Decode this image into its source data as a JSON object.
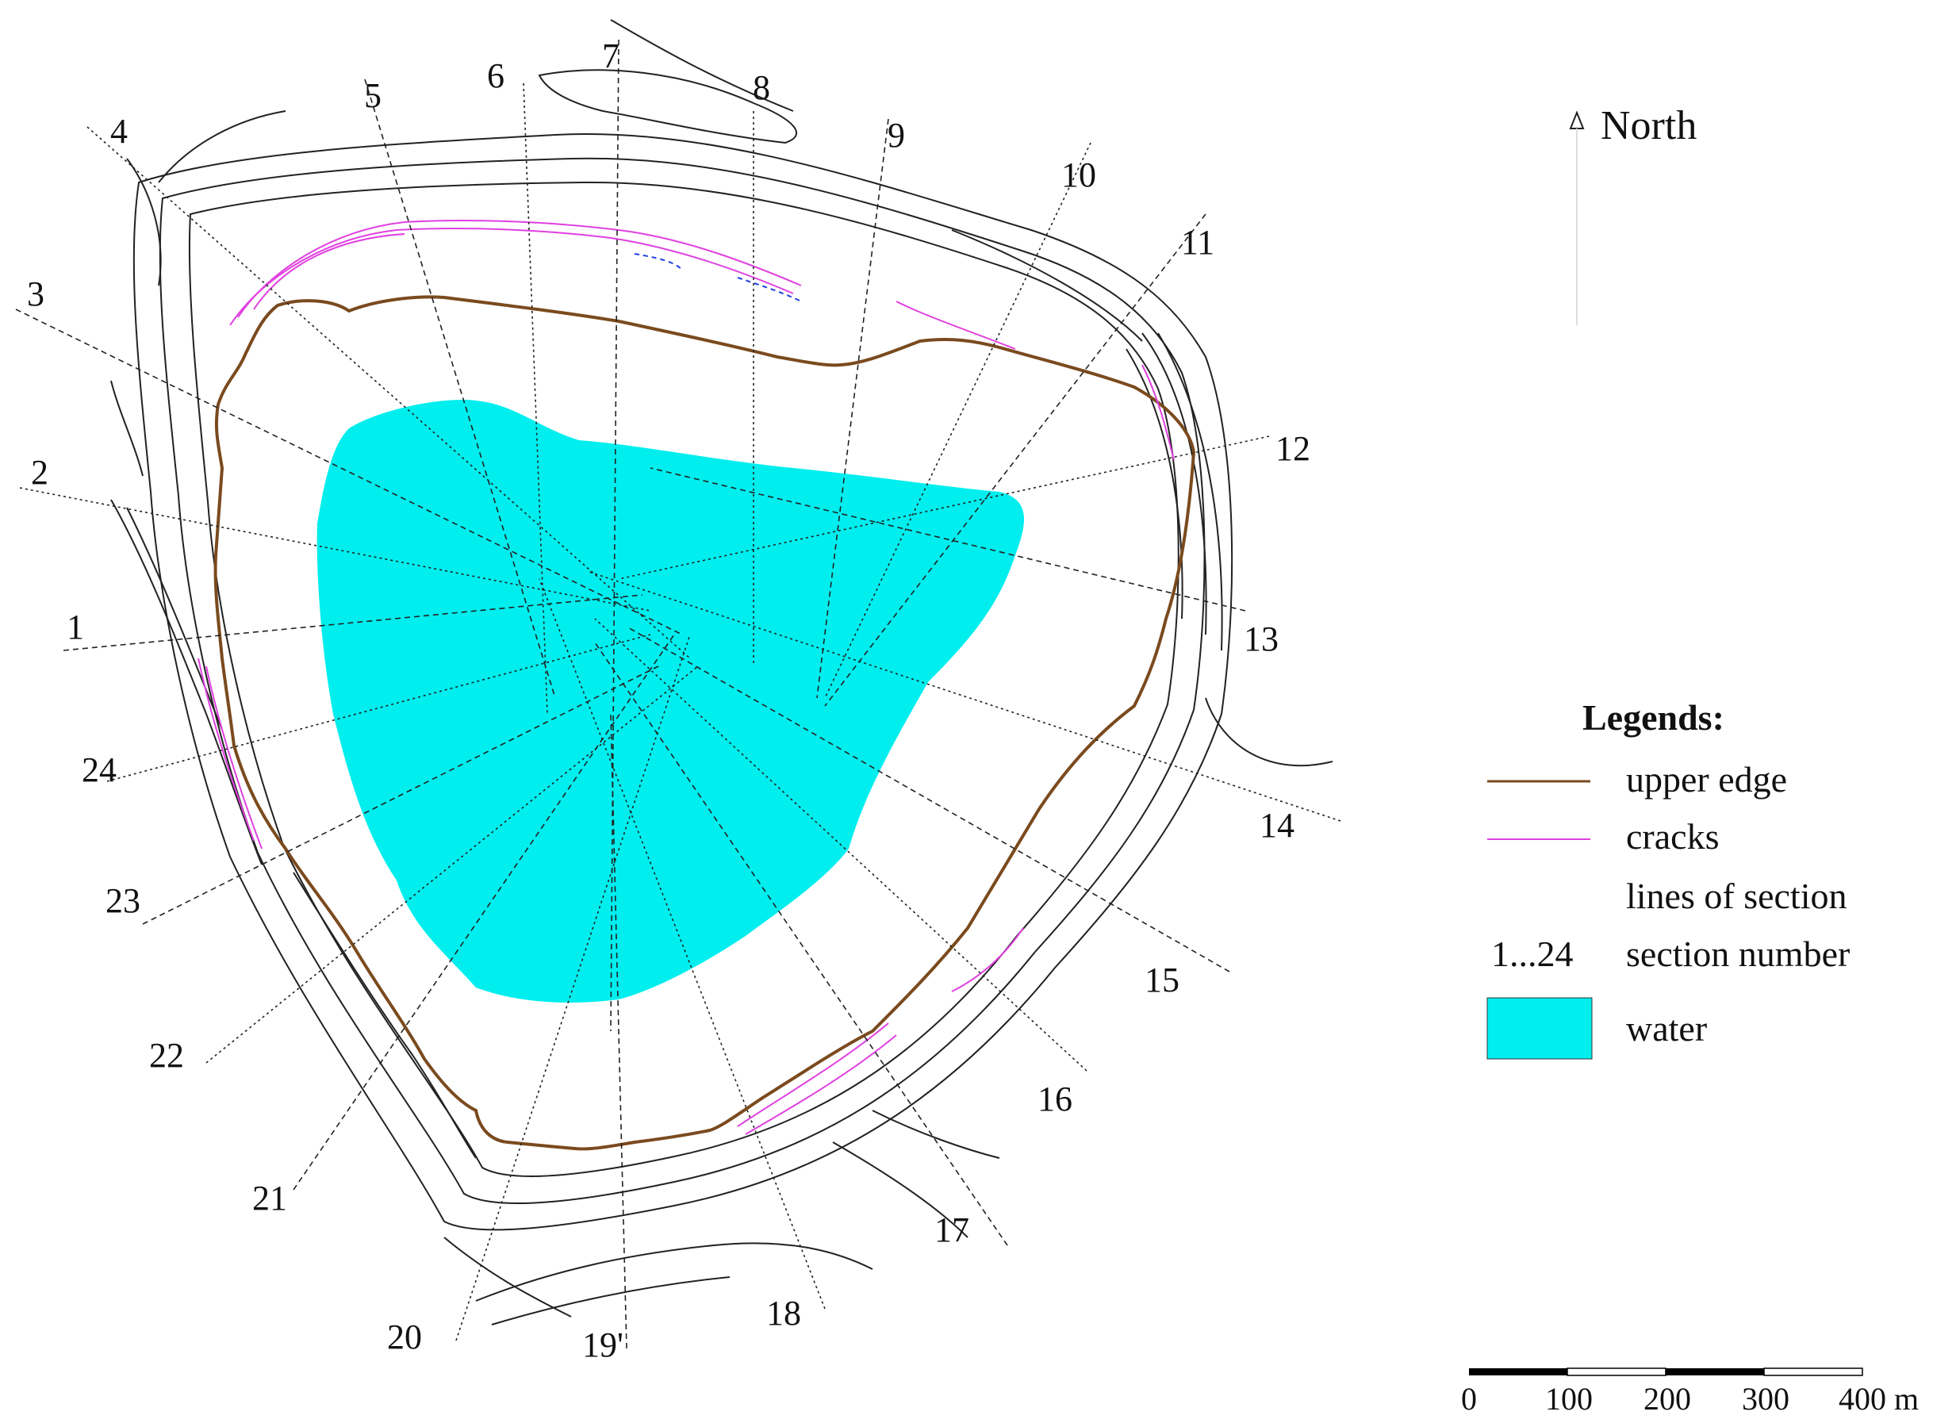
{
  "north": {
    "label": "North"
  },
  "sections": [
    "1",
    "2",
    "3",
    "4",
    "5",
    "6",
    "7",
    "8",
    "9",
    "10",
    "11",
    "12",
    "13",
    "14",
    "15",
    "16",
    "17",
    "18",
    "19'",
    "20",
    "21",
    "22",
    "23",
    "24"
  ],
  "legend": {
    "title": "Legends:",
    "items": [
      {
        "key": "upper_edge",
        "label": "upper edge",
        "color": "#7a4a1e"
      },
      {
        "key": "cracks",
        "label": "cracks",
        "color": "#e040e0"
      },
      {
        "key": "lines_of_section",
        "label": "lines of section",
        "color": "#111111"
      },
      {
        "key": "section_number",
        "symbol": "1...24",
        "label": "section number"
      },
      {
        "key": "water",
        "label": "water",
        "color": "#00f0f0"
      }
    ]
  },
  "scale_bar": {
    "ticks": [
      "0",
      "100",
      "200",
      "300",
      "400 m"
    ]
  }
}
